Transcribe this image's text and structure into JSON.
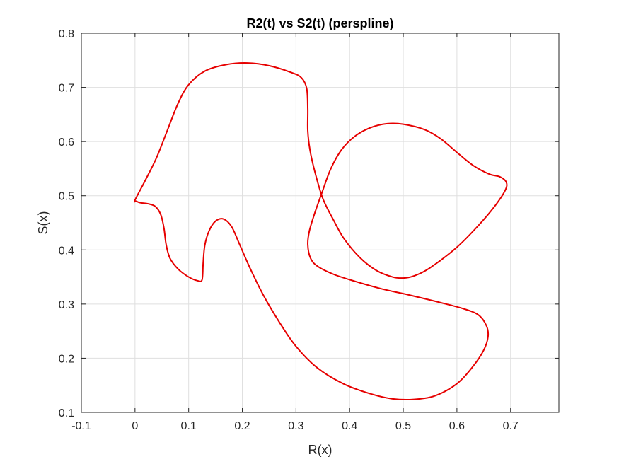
{
  "chart_data": {
    "type": "line",
    "title": "R2(t) vs S2(t) (perspline)",
    "xlabel": "R(x)",
    "ylabel": "S(x)",
    "xlim": [
      -0.1,
      0.79
    ],
    "ylim": [
      0.1,
      0.8
    ],
    "xticks": [
      -0.1,
      0,
      0.1,
      0.2,
      0.3,
      0.4,
      0.5,
      0.6,
      0.7
    ],
    "xtick_labels": [
      "-0.1",
      "0",
      "0.1",
      "0.2",
      "0.3",
      "0.4",
      "0.5",
      "0.6",
      "0.7"
    ],
    "yticks": [
      0.1,
      0.2,
      0.3,
      0.4,
      0.5,
      0.6,
      0.7,
      0.8
    ],
    "ytick_labels": [
      "0.1",
      "0.2",
      "0.3",
      "0.4",
      "0.5",
      "0.6",
      "0.7",
      "0.8"
    ],
    "grid": true,
    "box": true,
    "series": [
      {
        "color": "#e60000",
        "closed": true,
        "points": [
          [
            0.0,
            0.492
          ],
          [
            0.02,
            0.53
          ],
          [
            0.04,
            0.57
          ],
          [
            0.06,
            0.62
          ],
          [
            0.08,
            0.67
          ],
          [
            0.1,
            0.705
          ],
          [
            0.13,
            0.73
          ],
          [
            0.17,
            0.742
          ],
          [
            0.21,
            0.745
          ],
          [
            0.25,
            0.74
          ],
          [
            0.29,
            0.728
          ],
          [
            0.31,
            0.718
          ],
          [
            0.32,
            0.698
          ],
          [
            0.322,
            0.66
          ],
          [
            0.322,
            0.62
          ],
          [
            0.326,
            0.585
          ],
          [
            0.335,
            0.545
          ],
          [
            0.35,
            0.495
          ],
          [
            0.37,
            0.455
          ],
          [
            0.39,
            0.42
          ],
          [
            0.42,
            0.385
          ],
          [
            0.45,
            0.362
          ],
          [
            0.48,
            0.35
          ],
          [
            0.5,
            0.348
          ],
          [
            0.52,
            0.352
          ],
          [
            0.55,
            0.367
          ],
          [
            0.6,
            0.405
          ],
          [
            0.64,
            0.445
          ],
          [
            0.67,
            0.48
          ],
          [
            0.69,
            0.51
          ],
          [
            0.692,
            0.525
          ],
          [
            0.68,
            0.535
          ],
          [
            0.66,
            0.54
          ],
          [
            0.63,
            0.556
          ],
          [
            0.6,
            0.58
          ],
          [
            0.57,
            0.605
          ],
          [
            0.54,
            0.622
          ],
          [
            0.5,
            0.632
          ],
          [
            0.47,
            0.633
          ],
          [
            0.44,
            0.626
          ],
          [
            0.41,
            0.61
          ],
          [
            0.385,
            0.585
          ],
          [
            0.365,
            0.55
          ],
          [
            0.35,
            0.51
          ],
          [
            0.335,
            0.468
          ],
          [
            0.325,
            0.435
          ],
          [
            0.322,
            0.41
          ],
          [
            0.327,
            0.385
          ],
          [
            0.34,
            0.37
          ],
          [
            0.37,
            0.355
          ],
          [
            0.41,
            0.342
          ],
          [
            0.46,
            0.328
          ],
          [
            0.51,
            0.317
          ],
          [
            0.56,
            0.305
          ],
          [
            0.61,
            0.292
          ],
          [
            0.64,
            0.28
          ],
          [
            0.655,
            0.26
          ],
          [
            0.658,
            0.24
          ],
          [
            0.65,
            0.215
          ],
          [
            0.63,
            0.185
          ],
          [
            0.6,
            0.153
          ],
          [
            0.56,
            0.131
          ],
          [
            0.52,
            0.124
          ],
          [
            0.48,
            0.125
          ],
          [
            0.44,
            0.134
          ],
          [
            0.39,
            0.152
          ],
          [
            0.34,
            0.182
          ],
          [
            0.3,
            0.222
          ],
          [
            0.27,
            0.265
          ],
          [
            0.24,
            0.315
          ],
          [
            0.215,
            0.365
          ],
          [
            0.195,
            0.41
          ],
          [
            0.18,
            0.443
          ],
          [
            0.165,
            0.457
          ],
          [
            0.15,
            0.453
          ],
          [
            0.138,
            0.435
          ],
          [
            0.13,
            0.408
          ],
          [
            0.127,
            0.375
          ],
          [
            0.125,
            0.345
          ],
          [
            0.117,
            0.343
          ],
          [
            0.1,
            0.35
          ],
          [
            0.08,
            0.365
          ],
          [
            0.065,
            0.385
          ],
          [
            0.058,
            0.41
          ],
          [
            0.054,
            0.44
          ],
          [
            0.048,
            0.465
          ],
          [
            0.038,
            0.48
          ],
          [
            0.025,
            0.485
          ],
          [
            0.01,
            0.487
          ],
          [
            0.002,
            0.49
          ]
        ]
      }
    ]
  }
}
